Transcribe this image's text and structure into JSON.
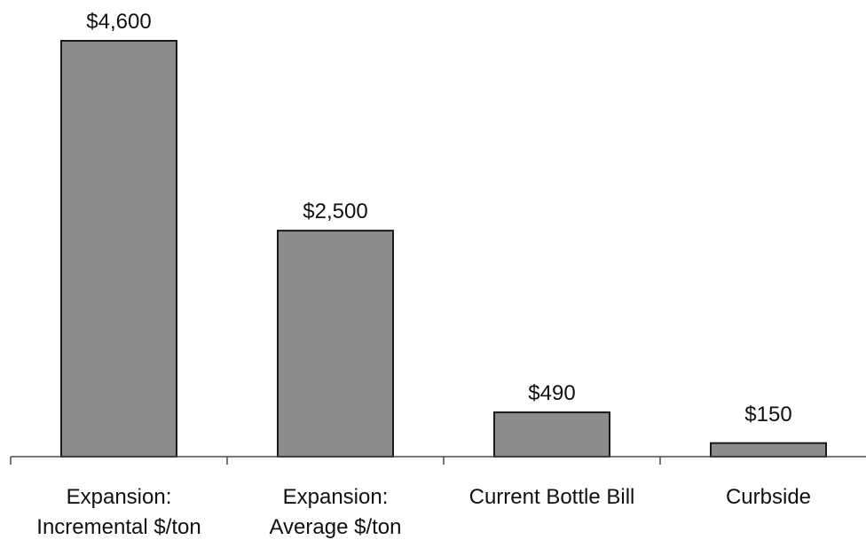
{
  "chart_data": {
    "type": "bar",
    "categories": [
      [
        "Expansion:",
        "Incremental $/ton"
      ],
      [
        "Expansion:",
        "Average $/ton"
      ],
      [
        "Current Bottle Bill"
      ],
      [
        "Curbside"
      ]
    ],
    "values": [
      4600,
      2500,
      490,
      150
    ],
    "data_labels": [
      "$4,600",
      "$2,500",
      "$490",
      "$150"
    ],
    "title": "",
    "xlabel": "",
    "ylabel": "",
    "ylim": [
      0,
      4600
    ],
    "grid": false,
    "legend": "none",
    "colors": {
      "bar_fill": "#8c8c8c",
      "bar_stroke": "#1a1a1a"
    }
  }
}
